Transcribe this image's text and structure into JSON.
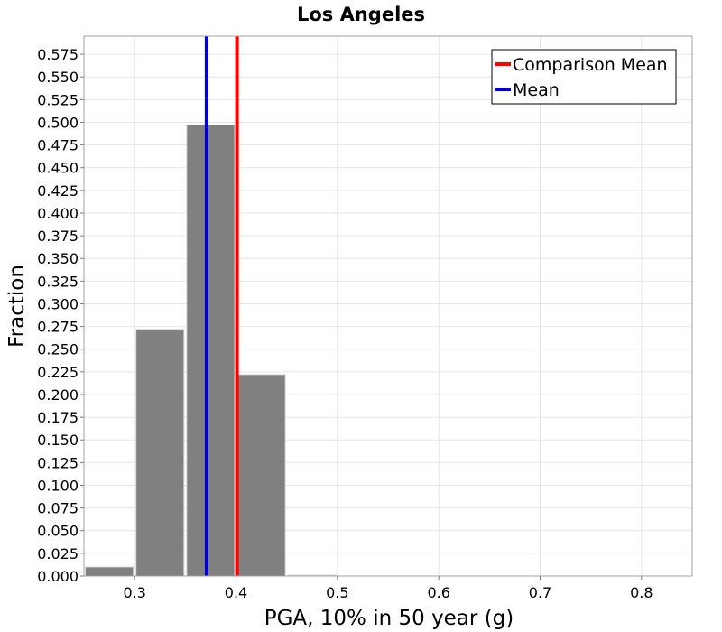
{
  "chart_data": {
    "type": "bar",
    "title": "Los Angeles",
    "xlabel": "PGA, 10% in 50 year (g)",
    "ylabel": "Fraction",
    "xlim": [
      0.25,
      0.85
    ],
    "ylim": [
      0,
      0.595
    ],
    "xticks": [
      0.3,
      0.4,
      0.5,
      0.6,
      0.7,
      0.8
    ],
    "xtick_labels": [
      "0.3",
      "0.4",
      "0.5",
      "0.6",
      "0.7",
      "0.8"
    ],
    "yticks": [
      0,
      0.025,
      0.05,
      0.075,
      0.1,
      0.125,
      0.15,
      0.175,
      0.2,
      0.225,
      0.25,
      0.275,
      0.3,
      0.325,
      0.35,
      0.375,
      0.4,
      0.425,
      0.45,
      0.475,
      0.5,
      0.525,
      0.55,
      0.575
    ],
    "ytick_labels": [
      "0.000",
      "0.025",
      "0.050",
      "0.075",
      "0.100",
      "0.125",
      "0.150",
      "0.175",
      "0.200",
      "0.225",
      "0.250",
      "0.275",
      "0.300",
      "0.325",
      "0.350",
      "0.375",
      "0.400",
      "0.425",
      "0.450",
      "0.475",
      "0.500",
      "0.525",
      "0.550",
      "0.575"
    ],
    "bin_width": 0.05,
    "bars": [
      {
        "x": 0.275,
        "value": 0.01
      },
      {
        "x": 0.325,
        "value": 0.272
      },
      {
        "x": 0.375,
        "value": 0.497
      },
      {
        "x": 0.425,
        "value": 0.222
      },
      {
        "x": 0.475,
        "value": 0.001
      }
    ],
    "bar_color": "#808080",
    "vlines": [
      {
        "name": "Comparison Mean",
        "x": 0.401,
        "color": "#ff0000"
      },
      {
        "name": "Mean",
        "x": 0.371,
        "color": "#0000dd"
      }
    ],
    "legend_position": "top-right",
    "grid": true
  }
}
